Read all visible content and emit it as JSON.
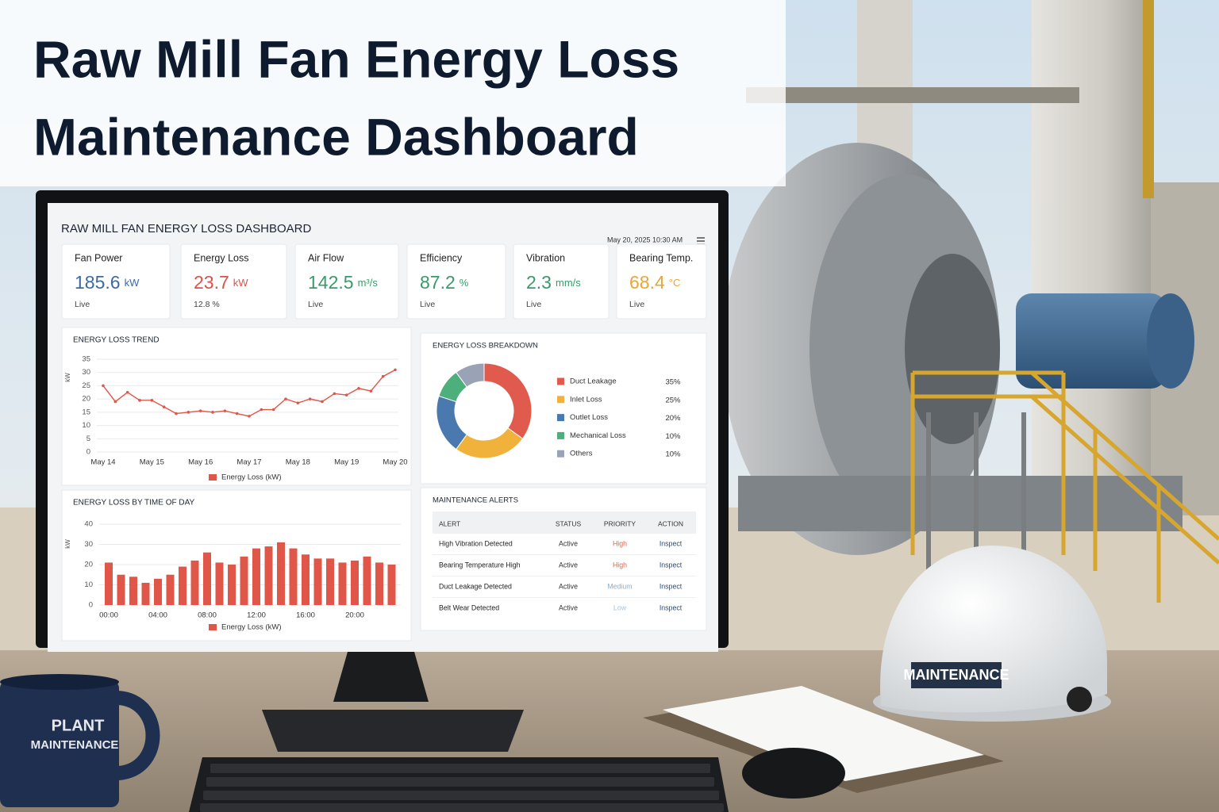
{
  "header": {
    "title": [
      "Raw Mill Fan Energy Loss",
      "Maintenance Dashboard"
    ]
  },
  "dashboard": {
    "title": "RAW MILL FAN ENERGY LOSS DASHBOARD",
    "timestamp": "May 20, 2025 10:30 AM",
    "kpis": [
      {
        "label": "Fan Power",
        "value": 185.6,
        "unit": "kW",
        "note": "Live",
        "color": "#3d6a9e"
      },
      {
        "label": "Energy Loss",
        "value": 23.7,
        "unit": "kW",
        "note": "12.8 %",
        "color": "#d9534a"
      },
      {
        "label": "Air Flow",
        "value": 142.5,
        "unit": "m³/s",
        "note": "Live",
        "color": "#3a9a6b"
      },
      {
        "label": "Efficiency",
        "value": 87.2,
        "unit": "%",
        "note": "Live",
        "color": "#3a9a6b"
      },
      {
        "label": "Vibration",
        "value": 2.3,
        "unit": "mm/s",
        "note": "Live",
        "color": "#3a9a6b"
      },
      {
        "label": "Bearing Temp.",
        "value": 68.4,
        "unit": "°C",
        "note": "Live",
        "color": "#e9a53a"
      }
    ],
    "alerts": {
      "title": "MAINTENANCE ALERTS",
      "columns": [
        "ALERT",
        "STATUS",
        "PRIORITY",
        "ACTION"
      ],
      "rows": [
        {
          "cells": [
            "High Vibration Detected",
            "Active",
            "High",
            "Inspect"
          ],
          "priority_color": "#e0634a"
        },
        {
          "cells": [
            "Bearing Temperature High",
            "Active",
            "High",
            "Inspect"
          ],
          "priority_color": "#e0634a"
        },
        {
          "cells": [
            "Duct Leakage Detected",
            "Active",
            "Medium",
            "Inspect"
          ],
          "priority_color": "#8fb0c9"
        },
        {
          "cells": [
            "Belt Wear Detected",
            "Active",
            "Low",
            "Inspect"
          ],
          "priority_color": "#a9c3d6"
        }
      ]
    }
  },
  "chart_data": [
    {
      "type": "line",
      "title": "ENERGY LOSS TREND",
      "ylabel": "kW",
      "categories": [
        "May 14",
        null,
        null,
        null,
        "May 15",
        null,
        null,
        null,
        "May 16",
        null,
        null,
        null,
        "May 17",
        null,
        null,
        null,
        "May 18",
        null,
        null,
        null,
        "May 19",
        null,
        null,
        null,
        "May 20"
      ],
      "series": [
        {
          "name": "Energy Loss (kW)",
          "color": "#e0574a",
          "values": [
            25,
            19,
            22.5,
            19.5,
            19.5,
            17,
            14.5,
            15,
            15.5,
            15,
            15.5,
            14.5,
            13.5,
            16,
            16,
            20,
            18.5,
            20,
            19,
            22,
            21.5,
            24,
            23,
            28.5,
            31
          ]
        }
      ],
      "ylim": [
        0,
        35
      ],
      "yticks": [
        0,
        5,
        10,
        15,
        20,
        25,
        30,
        35
      ],
      "grid": true
    },
    {
      "type": "pie",
      "title": "ENERGY LOSS BREAKDOWN",
      "categories": [
        "Duct Leakage",
        "Inlet Loss",
        "Outlet Loss",
        "Mechanical Loss",
        "Others"
      ],
      "values": [
        35,
        25,
        20,
        10,
        10
      ],
      "value_labels": [
        "35%",
        "25%",
        "20%",
        "10%",
        "10%"
      ],
      "colors": [
        "#e05a4e",
        "#f0b23a",
        "#4a79b0",
        "#4daf7c",
        "#9aa3b5"
      ],
      "donut": true
    },
    {
      "type": "bar",
      "title": "ENERGY LOSS BY TIME OF DAY",
      "ylabel": "kW",
      "categories": [
        "00:00",
        null,
        null,
        null,
        "04:00",
        null,
        null,
        null,
        "08:00",
        null,
        null,
        null,
        "12:00",
        null,
        null,
        null,
        "16:00",
        null,
        null,
        null,
        "20:00",
        null,
        null,
        null
      ],
      "series": [
        {
          "name": "Energy Loss (kW)",
          "color": "#e0574a",
          "values": [
            21,
            15,
            14,
            11,
            13,
            15,
            19,
            22,
            26,
            21,
            20,
            24,
            28,
            29,
            31,
            28,
            25,
            23,
            23,
            21,
            22,
            24,
            21,
            20
          ]
        }
      ],
      "ylim": [
        0,
        40
      ],
      "yticks": [
        0,
        10,
        20,
        30,
        40
      ],
      "grid": true
    }
  ],
  "scene": {
    "mug": [
      "PLANT",
      "MAINTENANCE"
    ],
    "helmet": "MAINTENANCE"
  }
}
